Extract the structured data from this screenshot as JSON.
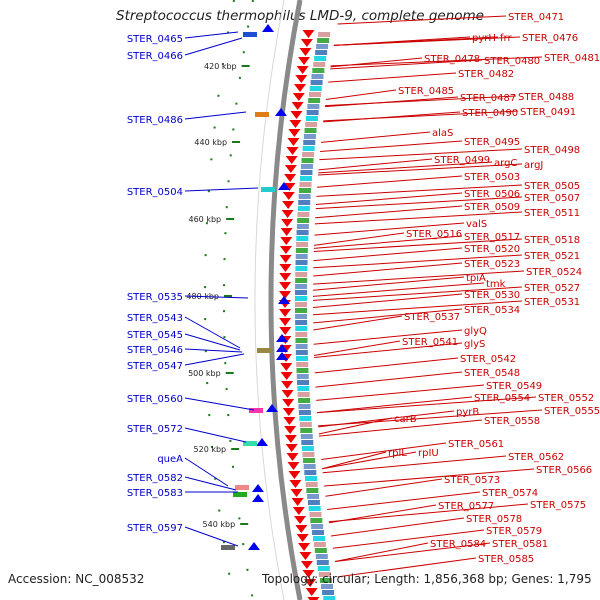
{
  "title": "Streptococcus thermophilus LMD-9, complete genome",
  "footer": {
    "accession": "Accession: NC_008532",
    "summary": "Topology: circular; Length: 1,856,368 bp; Genes: 1,795"
  },
  "colors": {
    "left_label": "#0000cc",
    "right_label": "#cc0000",
    "backbone": "#8a8a8a",
    "tick": "#1a7a1a",
    "cds": "#ee0000"
  },
  "ticks": [
    "420 kbp",
    "440 kbp",
    "460 kbp",
    "480 kbp",
    "500 kbp",
    "520 kbp",
    "540 kbp"
  ],
  "left_labels": [
    "STER_0465",
    "STER_0466",
    "STER_0486",
    "STER_0504",
    "STER_0535",
    "STER_0543",
    "STER_0545",
    "STER_0546",
    "STER_0547",
    "STER_0560",
    "STER_0572",
    "queA",
    "STER_0582",
    "STER_0583",
    "STER_0597"
  ],
  "right_labels": [
    "STER_0471",
    "pyrH",
    "frr",
    "STER_0476",
    "STER_0478",
    "STER_0480",
    "STER_0481",
    "STER_0482",
    "STER_0485",
    "STER_0487",
    "STER_0488",
    "STER_0490",
    "STER_0491",
    "alaS",
    "STER_0495",
    "STER_0498",
    "STER_0499",
    "argC",
    "argJ",
    "STER_0503",
    "STER_0505",
    "STER_0506",
    "STER_0507",
    "STER_0509",
    "STER_0511",
    "valS",
    "STER_0516",
    "STER_0517",
    "STER_0518",
    "STER_0520",
    "STER_0521",
    "STER_0523",
    "tpiA",
    "STER_0524",
    "tmk",
    "STER_0527",
    "STER_0530",
    "STER_0531",
    "STER_0534",
    "STER_0537",
    "glyQ",
    "STER_0541",
    "glyS",
    "STER_0542",
    "STER_0548",
    "STER_0549",
    "STER_0554",
    "STER_0552",
    "STER_0555",
    "pyrB",
    "carB",
    "STER_0558",
    "STER_0561",
    "rplL",
    "rpIU",
    "STER_0562",
    "STER_0566",
    "STER_0573",
    "STER_0574",
    "STER_0575",
    "STER_0577",
    "STER_0578",
    "STER_0579",
    "STER_0584",
    "STER_0581",
    "STER_0585"
  ]
}
